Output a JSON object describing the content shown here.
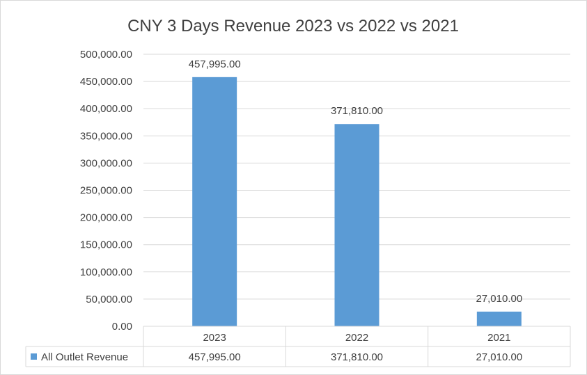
{
  "colors": {
    "bar": "#5b9bd5",
    "gridline": "#d9d9d9",
    "text": "#404040",
    "title": "#404040",
    "border": "#d9d9d9"
  },
  "chart_data": {
    "type": "bar",
    "title": "CNY 3 Days Revenue 2023 vs 2022 vs 2021",
    "xlabel": "",
    "ylabel": "",
    "categories": [
      "2023",
      "2022",
      "2021"
    ],
    "series": [
      {
        "name": "All Outlet Revenue",
        "values": [
          457995.0,
          371810.0,
          27010.0
        ],
        "labels": [
          "457,995.00",
          "371,810.00",
          "27,010.00"
        ]
      }
    ],
    "ylim": [
      0,
      500000
    ],
    "y_ticks": [
      0,
      50000,
      100000,
      150000,
      200000,
      250000,
      300000,
      350000,
      400000,
      450000,
      500000
    ],
    "y_tick_labels": [
      "0.00",
      "50,000.00",
      "100,000.00",
      "150,000.00",
      "200,000.00",
      "250,000.00",
      "300,000.00",
      "350,000.00",
      "400,000.00",
      "450,000.00",
      "500,000.00"
    ],
    "grid": true,
    "legend": "data-table-below",
    "data_table": {
      "row_label": "All Outlet Revenue",
      "cells": [
        "457,995.00",
        "371,810.00",
        "27,010.00"
      ]
    }
  }
}
